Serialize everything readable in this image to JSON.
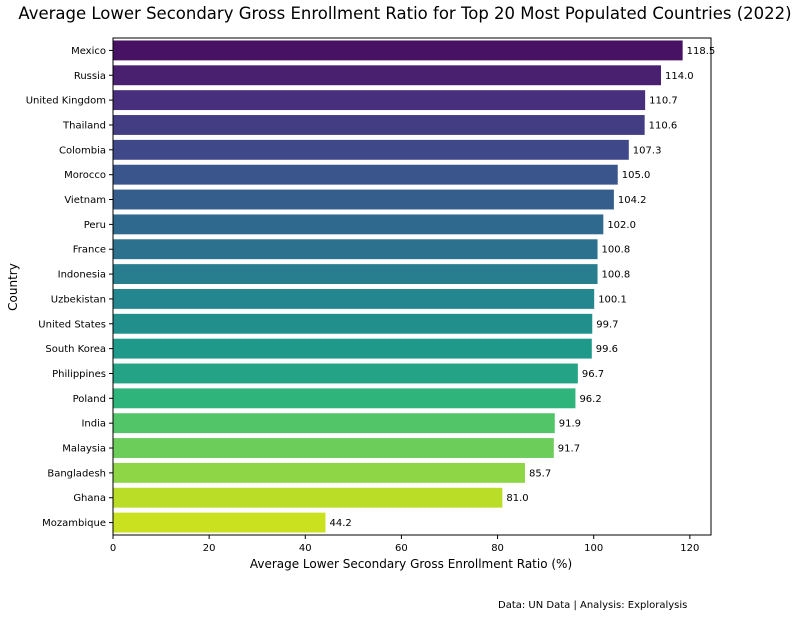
{
  "chart_data": {
    "type": "bar",
    "orientation": "horizontal",
    "title": "Average Lower Secondary Gross Enrollment Ratio for Top 20 Most Populated Countries (2022)",
    "xlabel": "Average Lower Secondary Gross Enrollment Ratio (%)",
    "ylabel": "Country",
    "xlim": [
      0,
      124.4
    ],
    "xticks": [
      "0",
      "20",
      "40",
      "60",
      "80",
      "100",
      "120"
    ],
    "categories": [
      "Mexico",
      "Russia",
      "United Kingdom",
      "Thailand",
      "Colombia",
      "Morocco",
      "Vietnam",
      "Peru",
      "France",
      "Indonesia",
      "Uzbekistan",
      "United States",
      "South Korea",
      "Philippines",
      "Poland",
      "India",
      "Malaysia",
      "Bangladesh",
      "Ghana",
      "Mozambique"
    ],
    "values": [
      118.5,
      114.0,
      110.7,
      110.6,
      107.3,
      105.0,
      104.2,
      102.0,
      100.8,
      100.8,
      100.1,
      99.7,
      99.6,
      96.7,
      96.2,
      91.9,
      91.7,
      85.7,
      81.0,
      44.2
    ],
    "value_labels": [
      "118.5",
      "114.0",
      "110.7",
      "110.6",
      "107.3",
      "105.0",
      "104.2",
      "102.0",
      "100.8",
      "100.8",
      "100.1",
      "99.7",
      "99.6",
      "96.7",
      "96.2",
      "91.9",
      "91.7",
      "85.7",
      "81.0",
      "44.2"
    ],
    "colors": [
      "#471164",
      "#48206f",
      "#472f7d",
      "#433d84",
      "#3f4889",
      "#3a548c",
      "#355e8d",
      "#30698e",
      "#2c728e",
      "#287d8e",
      "#24868e",
      "#21908d",
      "#1f9a8a",
      "#24a386",
      "#2fb47c",
      "#53c569",
      "#6ccd5a",
      "#8ed645",
      "#bade28",
      "#cae11f"
    ],
    "grid": false,
    "legend": "none"
  },
  "footer": {
    "source": "Data: UN Data | Analysis: Exploralysis"
  }
}
